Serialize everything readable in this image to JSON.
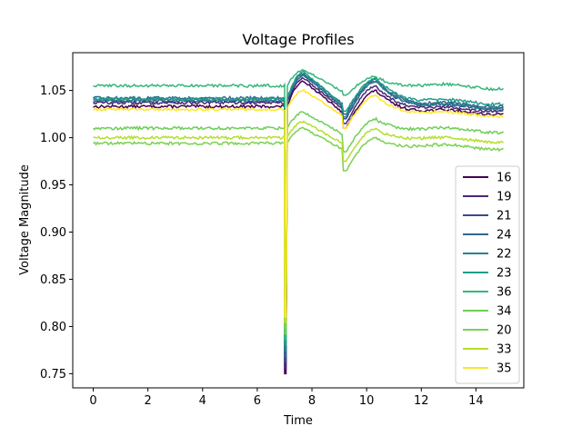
{
  "chart_data": {
    "type": "line",
    "title": "Voltage Profiles",
    "xlabel": "Time",
    "ylabel": "Voltage Magnitude",
    "xlim": [
      -0.75,
      15.75
    ],
    "ylim": [
      0.735,
      1.09
    ],
    "xticks": [
      0,
      2,
      4,
      6,
      8,
      10,
      12,
      14
    ],
    "yticks": [
      0.75,
      0.8,
      0.85,
      0.9,
      0.95,
      1.0,
      1.05
    ],
    "ytick_labels": [
      "0.75",
      "0.80",
      "0.85",
      "0.90",
      "0.95",
      "1.00",
      "1.05"
    ],
    "legend_position": "lower-right",
    "grid": false,
    "fault": {
      "start": 7.0,
      "clear": 9.1,
      "min_voltage": 0.75
    },
    "series": [
      {
        "name": "16",
        "color": "#440154",
        "pre": 1.033,
        "peak": 1.06,
        "dip": 1.01,
        "recovery_peak": 1.05,
        "final": 1.027
      },
      {
        "name": "19",
        "color": "#482878",
        "pre": 1.037,
        "peak": 1.063,
        "dip": 1.015,
        "recovery_peak": 1.055,
        "final": 1.03
      },
      {
        "name": "21",
        "color": "#3e4989",
        "pre": 1.039,
        "peak": 1.066,
        "dip": 1.02,
        "recovery_peak": 1.06,
        "final": 1.033
      },
      {
        "name": "24",
        "color": "#31688e",
        "pre": 1.042,
        "peak": 1.068,
        "dip": 1.025,
        "recovery_peak": 1.062,
        "final": 1.035
      },
      {
        "name": "22",
        "color": "#26828e",
        "pre": 1.04,
        "peak": 1.066,
        "dip": 1.022,
        "recovery_peak": 1.06,
        "final": 1.033
      },
      {
        "name": "23",
        "color": "#1f9e89",
        "pre": 1.041,
        "peak": 1.07,
        "dip": 1.028,
        "recovery_peak": 1.063,
        "final": 1.038
      },
      {
        "name": "36",
        "color": "#35b779",
        "pre": 1.055,
        "peak": 1.072,
        "dip": 1.045,
        "recovery_peak": 1.065,
        "final": 1.054
      },
      {
        "name": "34",
        "color": "#6ece58",
        "pre": 1.01,
        "peak": 1.027,
        "dip": 0.985,
        "recovery_peak": 1.02,
        "final": 1.008
      },
      {
        "name": "20",
        "color": "#7ad151",
        "pre": 0.994,
        "peak": 1.01,
        "dip": 0.965,
        "recovery_peak": 1.0,
        "final": 0.99
      },
      {
        "name": "33",
        "color": "#b5de2b",
        "pre": 1.0,
        "peak": 1.017,
        "dip": 0.975,
        "recovery_peak": 1.01,
        "final": 0.998
      },
      {
        "name": "35",
        "color": "#fde725",
        "pre": 1.03,
        "peak": 1.05,
        "dip": 1.01,
        "recovery_peak": 1.045,
        "final": 1.025
      }
    ]
  }
}
